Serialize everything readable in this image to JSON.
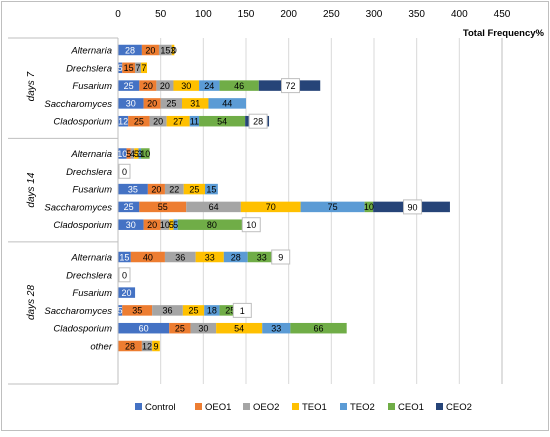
{
  "chart_data": {
    "type": "bar",
    "orientation": "horizontal",
    "stacked": true,
    "xlabel": "Total Frequency%",
    "xlim": [
      0,
      450
    ],
    "xticks": [
      0,
      50,
      100,
      150,
      200,
      250,
      300,
      350,
      400,
      450
    ],
    "grid": true,
    "legend_position": "bottom",
    "series": [
      {
        "name": "Control",
        "color": "#4472C4"
      },
      {
        "name": "OEO1",
        "color": "#ED7D31"
      },
      {
        "name": "OEO2",
        "color": "#A5A5A5"
      },
      {
        "name": "TEO1",
        "color": "#FFC000"
      },
      {
        "name": "TEO2",
        "color": "#5B9BD5"
      },
      {
        "name": "CEO1",
        "color": "#70AD47"
      },
      {
        "name": "CEO2",
        "color": "#264478"
      }
    ],
    "groups": [
      {
        "label": "days 7",
        "rows": [
          {
            "category": "Alternaria",
            "values": [
              28,
              20,
              15,
              3,
              0,
              0,
              0
            ],
            "labels": [
              "28",
              "20",
              "15",
              "3",
              "0",
              "",
              ""
            ]
          },
          {
            "category": "Drechslera",
            "values": [
              5,
              15,
              7,
              7,
              0,
              0,
              0
            ],
            "labels": [
              "5",
              "15",
              "7",
              "7",
              "",
              "",
              ""
            ]
          },
          {
            "category": "Fusarium",
            "values": [
              25,
              20,
              20,
              30,
              24,
              46,
              72
            ],
            "labels": [
              "25",
              "20",
              "20",
              "30",
              "24",
              "46",
              "72"
            ]
          },
          {
            "category": "Saccharomyces",
            "values": [
              30,
              20,
              25,
              31,
              44,
              0,
              0
            ],
            "labels": [
              "30",
              "20",
              "25",
              "31",
              "44",
              "",
              ""
            ]
          },
          {
            "category": "Cladosporium",
            "values": [
              12,
              25,
              20,
              27,
              11,
              54,
              28
            ],
            "labels": [
              "12",
              "25",
              "20",
              "27",
              "11",
              "54",
              "28"
            ]
          }
        ]
      },
      {
        "label": "days 14",
        "rows": [
          {
            "category": "Alternaria",
            "values": [
              10,
              5,
              4,
              5,
              3,
              10,
              0
            ],
            "labels": [
              "10",
              "5",
              "4",
              "5",
              "3",
              "10",
              ""
            ]
          },
          {
            "category": "Drechslera",
            "values": [
              0,
              0,
              0,
              0,
              0,
              0,
              0
            ],
            "labels": [
              "0",
              "",
              "",
              "",
              "",
              "",
              ""
            ]
          },
          {
            "category": "Fusarium",
            "values": [
              35,
              20,
              22,
              25,
              15,
              0,
              0
            ],
            "labels": [
              "35",
              "20",
              "22",
              "25",
              "15",
              "",
              ""
            ]
          },
          {
            "category": "Saccharomyces",
            "values": [
              25,
              55,
              64,
              70,
              75,
              10,
              90
            ],
            "labels": [
              "25",
              "55",
              "64",
              "70",
              "75",
              "10",
              "90"
            ]
          },
          {
            "category": "Cladosporium",
            "values": [
              30,
              20,
              10,
              5,
              5,
              80,
              10
            ],
            "labels": [
              "30",
              "20",
              "10",
              "5",
              "5",
              "80",
              "10"
            ]
          }
        ]
      },
      {
        "label": "days 28",
        "rows": [
          {
            "category": "Alternaria",
            "values": [
              15,
              40,
              36,
              33,
              28,
              33,
              9
            ],
            "labels": [
              "15",
              "40",
              "36",
              "33",
              "28",
              "33",
              "9"
            ]
          },
          {
            "category": "Drechslera",
            "values": [
              0,
              0,
              0,
              0,
              0,
              0,
              0
            ],
            "labels": [
              "0",
              "",
              "",
              "",
              "",
              "",
              ""
            ]
          },
          {
            "category": "Fusarium",
            "values": [
              20,
              0,
              0,
              0,
              0,
              0,
              0
            ],
            "labels": [
              "20",
              "",
              "",
              "",
              "",
              "",
              ""
            ]
          },
          {
            "category": "Saccharomyces",
            "values": [
              5,
              35,
              36,
              25,
              18,
              25,
              1
            ],
            "labels": [
              "5",
              "35",
              "36",
              "25",
              "18",
              "25",
              "1"
            ]
          },
          {
            "category": "Cladosporium",
            "values": [
              60,
              25,
              30,
              54,
              33,
              66,
              0
            ],
            "labels": [
              "60",
              "25",
              "30",
              "54",
              "33",
              "66",
              ""
            ]
          },
          {
            "category": "other",
            "values": [
              0,
              28,
              12,
              9,
              0,
              0,
              0
            ],
            "labels": [
              "",
              "28",
              "12",
              "9",
              "",
              "",
              ""
            ]
          }
        ]
      }
    ]
  }
}
